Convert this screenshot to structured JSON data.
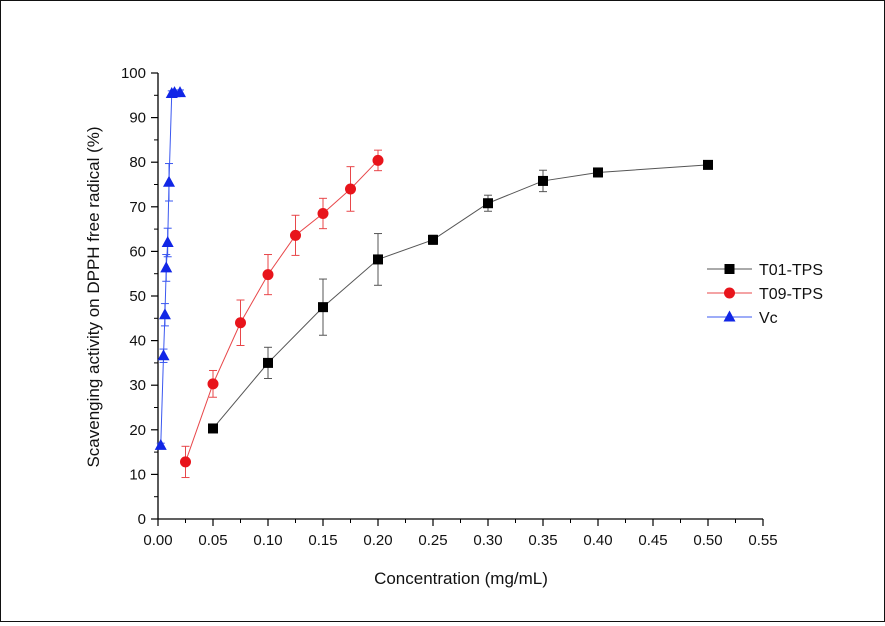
{
  "chart_data": {
    "type": "line",
    "title": "",
    "xlabel": "Concentration (mg/mL)",
    "ylabel": "Scavenging activity on DPPH free radical (%)",
    "xlim": [
      0,
      0.55
    ],
    "ylim": [
      0,
      100
    ],
    "x_ticks": [
      "0.00",
      "0.05",
      "0.10",
      "0.15",
      "0.20",
      "0.25",
      "0.30",
      "0.35",
      "0.40",
      "0.45",
      "0.50",
      "0.55"
    ],
    "y_ticks": [
      "0",
      "10",
      "20",
      "30",
      "40",
      "50",
      "60",
      "70",
      "80",
      "90",
      "100"
    ],
    "legend_position": "right",
    "series": [
      {
        "name": "T01-TPS",
        "color": "#555555",
        "marker_color": "#000000",
        "marker": "square",
        "x": [
          0.05,
          0.1,
          0.15,
          0.2,
          0.25,
          0.3,
          0.35,
          0.4,
          0.5
        ],
        "y": [
          20.3,
          35.0,
          47.5,
          58.2,
          62.6,
          70.8,
          75.8,
          77.7,
          79.4
        ],
        "err": [
          0.8,
          3.5,
          6.3,
          5.8,
          1.0,
          1.8,
          2.4,
          1.0,
          0.8
        ]
      },
      {
        "name": "T09-TPS",
        "color": "#e8474a",
        "marker_color": "#e8141b",
        "marker": "circle",
        "x": [
          0.025,
          0.05,
          0.075,
          0.1,
          0.125,
          0.15,
          0.175,
          0.2
        ],
        "y": [
          12.8,
          30.3,
          44.0,
          54.8,
          63.6,
          68.5,
          74.0,
          80.4
        ],
        "err": [
          3.5,
          3.0,
          5.1,
          4.5,
          4.5,
          3.4,
          5.0,
          2.3
        ]
      },
      {
        "name": "Vc",
        "color": "#3b58f0",
        "marker_color": "#1126e6",
        "marker": "triangle",
        "x": [
          0.0025,
          0.005,
          0.0063,
          0.0075,
          0.0088,
          0.01,
          0.0125,
          0.015,
          0.02
        ],
        "y": [
          16.5,
          36.6,
          45.8,
          56.3,
          62.0,
          75.5,
          95.4,
          95.6,
          95.6
        ],
        "err": [
          0.5,
          1.5,
          2.5,
          3.0,
          3.2,
          4.2,
          0.6,
          0.6,
          0.6
        ]
      }
    ]
  }
}
